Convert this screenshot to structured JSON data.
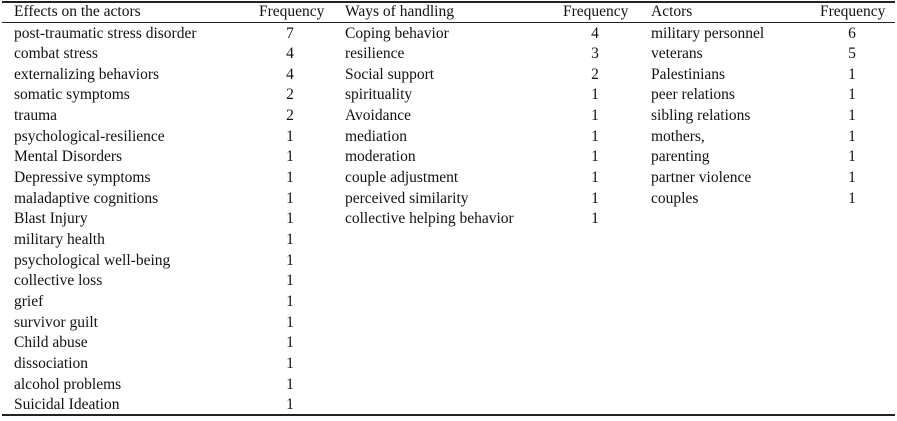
{
  "table": {
    "groups": [
      {
        "header": "Effects on the actors",
        "frequency_header": "Frequency",
        "rows": [
          {
            "label": "post-traumatic stress disorder",
            "frequency": 7
          },
          {
            "label": "combat stress",
            "frequency": 4
          },
          {
            "label": "externalizing behaviors",
            "frequency": 4
          },
          {
            "label": "somatic symptoms",
            "frequency": 2
          },
          {
            "label": "trauma",
            "frequency": 2
          },
          {
            "label": "psychological-resilience",
            "frequency": 1
          },
          {
            "label": "Mental Disorders",
            "frequency": 1
          },
          {
            "label": "Depressive symptoms",
            "frequency": 1
          },
          {
            "label": "maladaptive cognitions",
            "frequency": 1
          },
          {
            "label": "Blast Injury",
            "frequency": 1
          },
          {
            "label": "military health",
            "frequency": 1
          },
          {
            "label": "psychological well-being",
            "frequency": 1
          },
          {
            "label": "collective loss",
            "frequency": 1
          },
          {
            "label": "grief",
            "frequency": 1
          },
          {
            "label": "survivor guilt",
            "frequency": 1
          },
          {
            "label": "Child abuse",
            "frequency": 1
          },
          {
            "label": "dissociation",
            "frequency": 1
          },
          {
            "label": "alcohol problems",
            "frequency": 1
          },
          {
            "label": "Suicidal Ideation",
            "frequency": 1
          }
        ]
      },
      {
        "header": "Ways of handling",
        "frequency_header": "Frequency",
        "rows": [
          {
            "label": "Coping behavior",
            "frequency": 4
          },
          {
            "label": "resilience",
            "frequency": 3
          },
          {
            "label": "Social support",
            "frequency": 2
          },
          {
            "label": "spirituality",
            "frequency": 1
          },
          {
            "label": "Avoidance",
            "frequency": 1
          },
          {
            "label": "mediation",
            "frequency": 1
          },
          {
            "label": "moderation",
            "frequency": 1
          },
          {
            "label": "couple adjustment",
            "frequency": 1
          },
          {
            "label": "perceived similarity",
            "frequency": 1
          },
          {
            "label": "collective helping behavior",
            "frequency": 1
          }
        ]
      },
      {
        "header": "Actors",
        "frequency_header": "Frequency",
        "rows": [
          {
            "label": "military personnel",
            "frequency": 6
          },
          {
            "label": "veterans",
            "frequency": 5
          },
          {
            "label": "Palestinians",
            "frequency": 1
          },
          {
            "label": "peer relations",
            "frequency": 1
          },
          {
            "label": "sibling relations",
            "frequency": 1
          },
          {
            "label": "mothers,",
            "frequency": 1
          },
          {
            "label": "parenting",
            "frequency": 1
          },
          {
            "label": "partner violence",
            "frequency": 1
          },
          {
            "label": "couples",
            "frequency": 1
          }
        ]
      }
    ]
  }
}
